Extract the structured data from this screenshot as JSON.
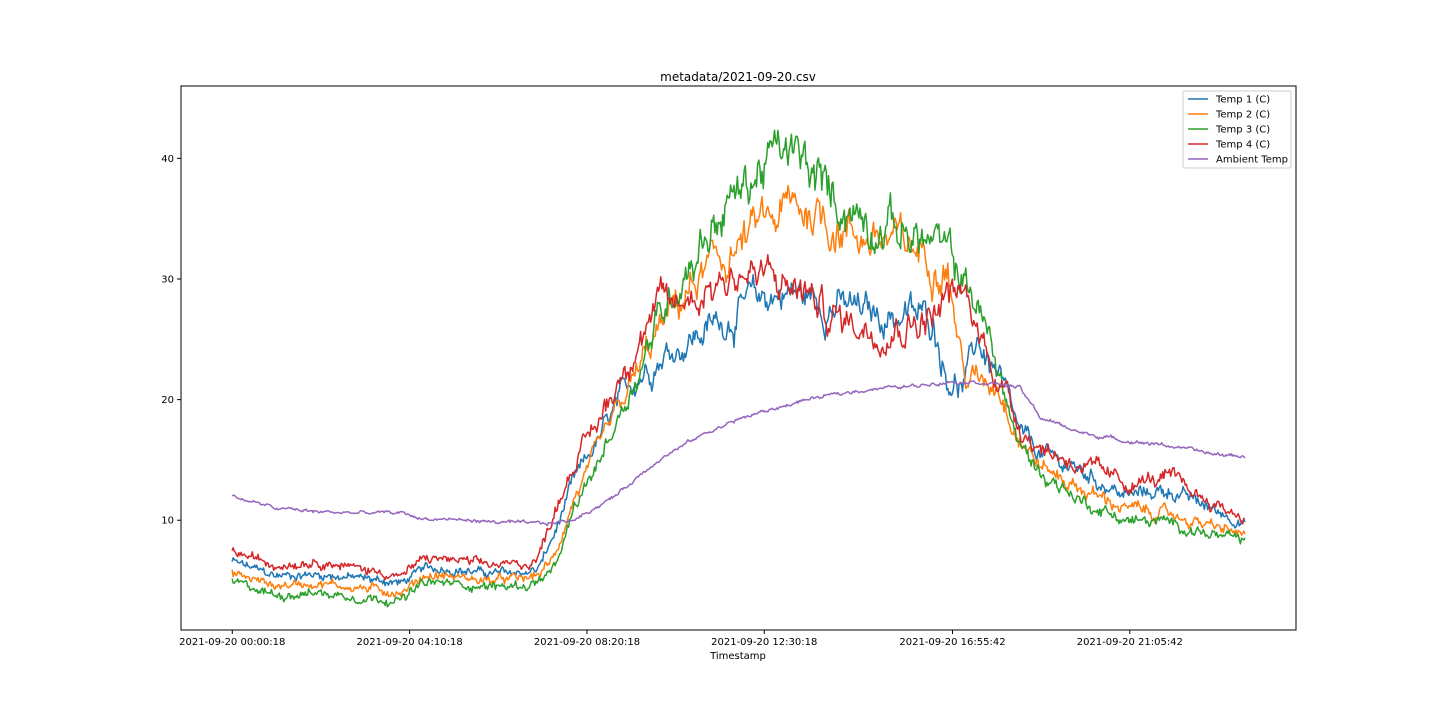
{
  "chart_data": {
    "type": "line",
    "title": "metadata/2021-09-20.csv",
    "xlabel": "Timestamp",
    "ylabel": "",
    "x_tick_labels": [
      "2021-09-20 00:00:18",
      "2021-09-20 04:10:18",
      "2021-09-20 08:20:18",
      "2021-09-20 12:30:18",
      "2021-09-20 16:55:42",
      "2021-09-20 21:05:42"
    ],
    "x_tick_hours": [
      0.005,
      4.172,
      8.339,
      12.505,
      16.928,
      21.095
    ],
    "xlim_hours": [
      -1.2,
      25.0
    ],
    "data_x_range_hours": [
      0.0,
      23.8
    ],
    "y_ticks": [
      10,
      20,
      30,
      40
    ],
    "ylim": [
      0.9,
      46.0
    ],
    "grid": false,
    "legend_position": "upper right",
    "x_hours": [
      0,
      1,
      2,
      3,
      4,
      4.5,
      5,
      6,
      7,
      7.2,
      7.6,
      8,
      8.5,
      9,
      9.5,
      10,
      10.5,
      11,
      11.5,
      12,
      12.5,
      13,
      13.5,
      14,
      14.5,
      15,
      15.5,
      16,
      16.5,
      16.8,
      17.2,
      17.5,
      18,
      18.5,
      19,
      20,
      21,
      22,
      23,
      23.8
    ],
    "series": [
      {
        "name": "Temp 1 (C)",
        "color": "#1f77b4",
        "values": [
          6.6,
          5.4,
          5.5,
          5.2,
          4.8,
          6.0,
          6.0,
          5.6,
          5.7,
          6.0,
          9.0,
          13.0,
          16.0,
          19.0,
          22.0,
          23.5,
          24.5,
          25.5,
          26.5,
          27.5,
          28.5,
          29.0,
          28.5,
          28.0,
          27.5,
          27.0,
          27.0,
          27.0,
          26.5,
          22.0,
          21.0,
          25.0,
          22.0,
          17.0,
          15.5,
          14.0,
          12.0,
          12.5,
          11.0,
          9.8
        ]
      },
      {
        "name": "Temp 2 (C)",
        "color": "#ff7f0e",
        "values": [
          5.6,
          4.6,
          4.8,
          4.4,
          4.0,
          5.4,
          5.4,
          5.0,
          5.2,
          5.5,
          7.0,
          11.5,
          15.0,
          18.5,
          22.0,
          25.5,
          28.0,
          30.0,
          31.5,
          33.0,
          34.5,
          35.5,
          36.0,
          35.0,
          34.0,
          33.5,
          33.0,
          32.5,
          32.0,
          31.5,
          22.0,
          21.5,
          21.5,
          17.0,
          14.5,
          12.5,
          11.0,
          10.5,
          9.5,
          8.8
        ]
      },
      {
        "name": "Temp 3 (C)",
        "color": "#2ca02c",
        "values": [
          4.9,
          3.8,
          4.0,
          3.6,
          3.4,
          4.8,
          4.8,
          4.5,
          4.6,
          5.0,
          6.0,
          10.5,
          14.0,
          18.0,
          22.0,
          26.5,
          30.0,
          33.0,
          35.5,
          37.5,
          39.5,
          40.5,
          39.0,
          37.0,
          36.0,
          35.0,
          34.5,
          33.5,
          33.0,
          32.0,
          30.0,
          28.0,
          22.5,
          16.0,
          14.0,
          11.5,
          10.0,
          9.8,
          8.8,
          8.3
        ]
      },
      {
        "name": "Temp 4 (C)",
        "color": "#d62728",
        "values": [
          7.4,
          6.3,
          6.6,
          6.0,
          5.4,
          6.8,
          6.8,
          6.3,
          6.4,
          7.0,
          11.0,
          14.5,
          17.5,
          21.0,
          25.0,
          27.5,
          28.0,
          29.0,
          30.0,
          30.5,
          30.0,
          29.5,
          29.0,
          27.0,
          26.5,
          26.0,
          26.0,
          26.5,
          27.0,
          28.5,
          28.5,
          26.0,
          22.0,
          18.0,
          16.0,
          14.5,
          13.0,
          13.5,
          11.5,
          10.2
        ]
      },
      {
        "name": "Ambient Temp",
        "color": "#9467bd",
        "values": [
          12.0,
          11.0,
          10.7,
          10.6,
          10.6,
          10.1,
          10.1,
          9.9,
          9.7,
          9.7,
          9.8,
          10.0,
          11.0,
          12.0,
          13.5,
          15.0,
          16.0,
          17.0,
          17.8,
          18.5,
          19.0,
          19.5,
          20.0,
          20.3,
          20.6,
          20.9,
          21.0,
          21.1,
          21.4,
          21.5,
          21.5,
          21.5,
          21.3,
          21.0,
          18.5,
          17.2,
          16.6,
          16.2,
          15.5,
          15.3
        ]
      }
    ]
  }
}
